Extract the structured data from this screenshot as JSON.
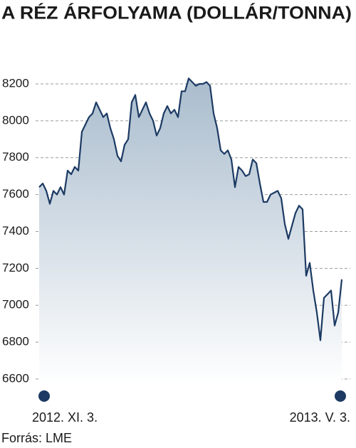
{
  "chart_data": {
    "type": "area",
    "title": "A RÉZ ÁRFOLYAMA (DOLLÁR/TONNA)",
    "source": "Forrás: LME",
    "categories": [
      "2012. XI. 3.",
      null,
      null,
      null,
      null,
      null,
      null,
      null,
      null,
      null,
      null,
      null,
      null,
      null,
      null,
      null,
      null,
      null,
      null,
      null,
      null,
      null,
      null,
      null,
      null,
      null,
      null,
      null,
      null,
      null,
      null,
      null,
      null,
      null,
      null,
      null,
      null,
      null,
      null,
      null,
      null,
      null,
      null,
      null,
      null,
      null,
      null,
      null,
      null,
      null,
      null,
      null,
      null,
      null,
      null,
      null,
      null,
      null,
      null,
      null,
      null,
      null,
      null,
      null,
      null,
      null,
      null,
      null,
      null,
      null,
      null,
      null,
      null,
      null,
      null,
      null,
      null,
      null,
      null,
      null,
      null,
      null,
      null,
      null,
      null,
      "2013. V. 3."
    ],
    "values": [
      7640,
      7660,
      7620,
      7550,
      7620,
      7600,
      7640,
      7600,
      7730,
      7710,
      7750,
      7730,
      7940,
      7980,
      8020,
      8040,
      8100,
      8060,
      8020,
      8040,
      7960,
      7900,
      7810,
      7780,
      7870,
      7900,
      8100,
      8140,
      8020,
      8060,
      8100,
      8040,
      8000,
      7920,
      7960,
      8040,
      8080,
      8040,
      8060,
      8020,
      8160,
      8160,
      8230,
      8210,
      8190,
      8200,
      8200,
      8210,
      8190,
      8040,
      7960,
      7840,
      7820,
      7840,
      7790,
      7640,
      7750,
      7730,
      7700,
      7710,
      7790,
      7770,
      7660,
      7560,
      7560,
      7600,
      7610,
      7620,
      7580,
      7440,
      7360,
      7430,
      7500,
      7540,
      7520,
      7160,
      7230,
      7080,
      6960,
      6810,
      7040,
      7060,
      7080,
      6890,
      6960,
      7140
    ],
    "color": "#1c3a63",
    "ylim": [
      6560,
      8260
    ],
    "yticks": [
      6600,
      6800,
      7000,
      7200,
      7400,
      7600,
      7800,
      8000,
      8200
    ],
    "grid": true
  }
}
